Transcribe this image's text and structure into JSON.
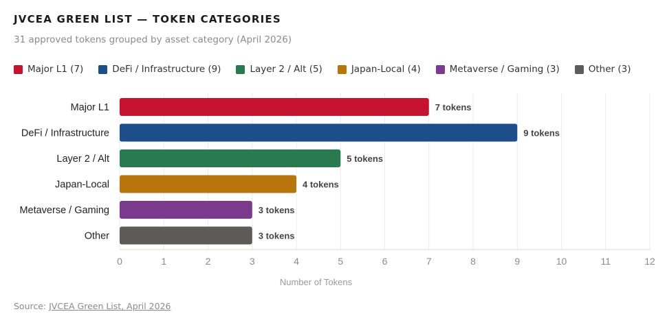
{
  "chart_data": {
    "type": "bar",
    "orientation": "horizontal",
    "title": "JVCEA GREEN LIST — TOKEN CATEGORIES",
    "subtitle": "31 approved tokens grouped by asset category (April 2026)",
    "categories": [
      "Major L1",
      "DeFi / Infrastructure",
      "Layer 2 / Alt",
      "Japan-Local",
      "Metaverse / Gaming",
      "Other"
    ],
    "values": [
      7,
      9,
      5,
      4,
      3,
      3
    ],
    "value_labels": [
      "7 tokens",
      "9 tokens",
      "5 tokens",
      "4 tokens",
      "3 tokens",
      "3 tokens"
    ],
    "colors": [
      "#c41230",
      "#1c4f8a",
      "#2a7a50",
      "#b8750c",
      "#7a3b8f",
      "#5e5c58"
    ],
    "legend": [
      {
        "label": "Major L1 (7)",
        "color": "#c41230"
      },
      {
        "label": "DeFi / Infrastructure (9)",
        "color": "#1c4f8a"
      },
      {
        "label": "Layer 2 / Alt (5)",
        "color": "#2a7a50"
      },
      {
        "label": "Japan-Local (4)",
        "color": "#b8750c"
      },
      {
        "label": "Metaverse / Gaming (3)",
        "color": "#7a3b8f"
      },
      {
        "label": "Other (3)",
        "color": "#5e5c58"
      }
    ],
    "legend_position": "top-left",
    "xlabel": "Number of Tokens",
    "ylabel": "",
    "xlim": [
      0,
      12
    ],
    "xticks": [
      "0",
      "1",
      "2",
      "3",
      "4",
      "5",
      "6",
      "7",
      "8",
      "9",
      "10",
      "11",
      "12"
    ],
    "grid": true
  },
  "footer": {
    "prefix": "Source: ",
    "link_text": "JVCEA Green List, April 2026"
  }
}
